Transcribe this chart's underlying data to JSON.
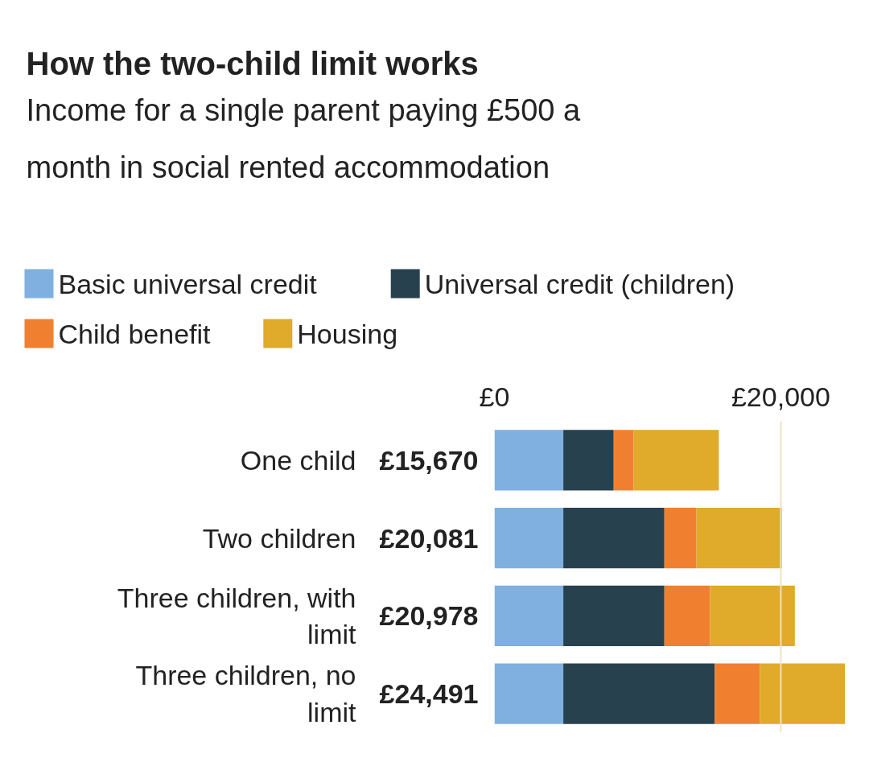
{
  "chart_data": {
    "type": "bar",
    "orientation": "horizontal",
    "stacked": true,
    "title": "How the two-child limit works",
    "subtitle": "Income for a single parent paying £500 a month in social rented accommodation",
    "categories": [
      "One child",
      "Two children",
      "Three children, with limit",
      "Three children, no limit"
    ],
    "series": [
      {
        "name": "Basic universal credit",
        "color": "#7fb0e0",
        "values": [
          4810,
          4810,
          4810,
          4810
        ]
      },
      {
        "name": "Universal credit (children)",
        "color": "#27414f",
        "values": [
          3520,
          7060,
          7060,
          10580
        ]
      },
      {
        "name": "Child benefit",
        "color": "#f08030",
        "values": [
          1380,
          2240,
          3180,
          3140
        ]
      },
      {
        "name": "Housing",
        "color": "#e0aa2a",
        "values": [
          5960,
          5970,
          5930,
          5960
        ]
      }
    ],
    "totals": [
      "£15,670",
      "£20,081",
      "£20,978",
      "£24,491"
    ],
    "xlim": [
      0,
      24500
    ],
    "xticks": [
      {
        "value": 0,
        "label": "£0"
      },
      {
        "value": 20000,
        "label": "£20,000"
      }
    ],
    "ref_lines": [
      {
        "axis": "x",
        "value": 20000,
        "color": "#efe3bd"
      }
    ],
    "legend": "top left"
  }
}
